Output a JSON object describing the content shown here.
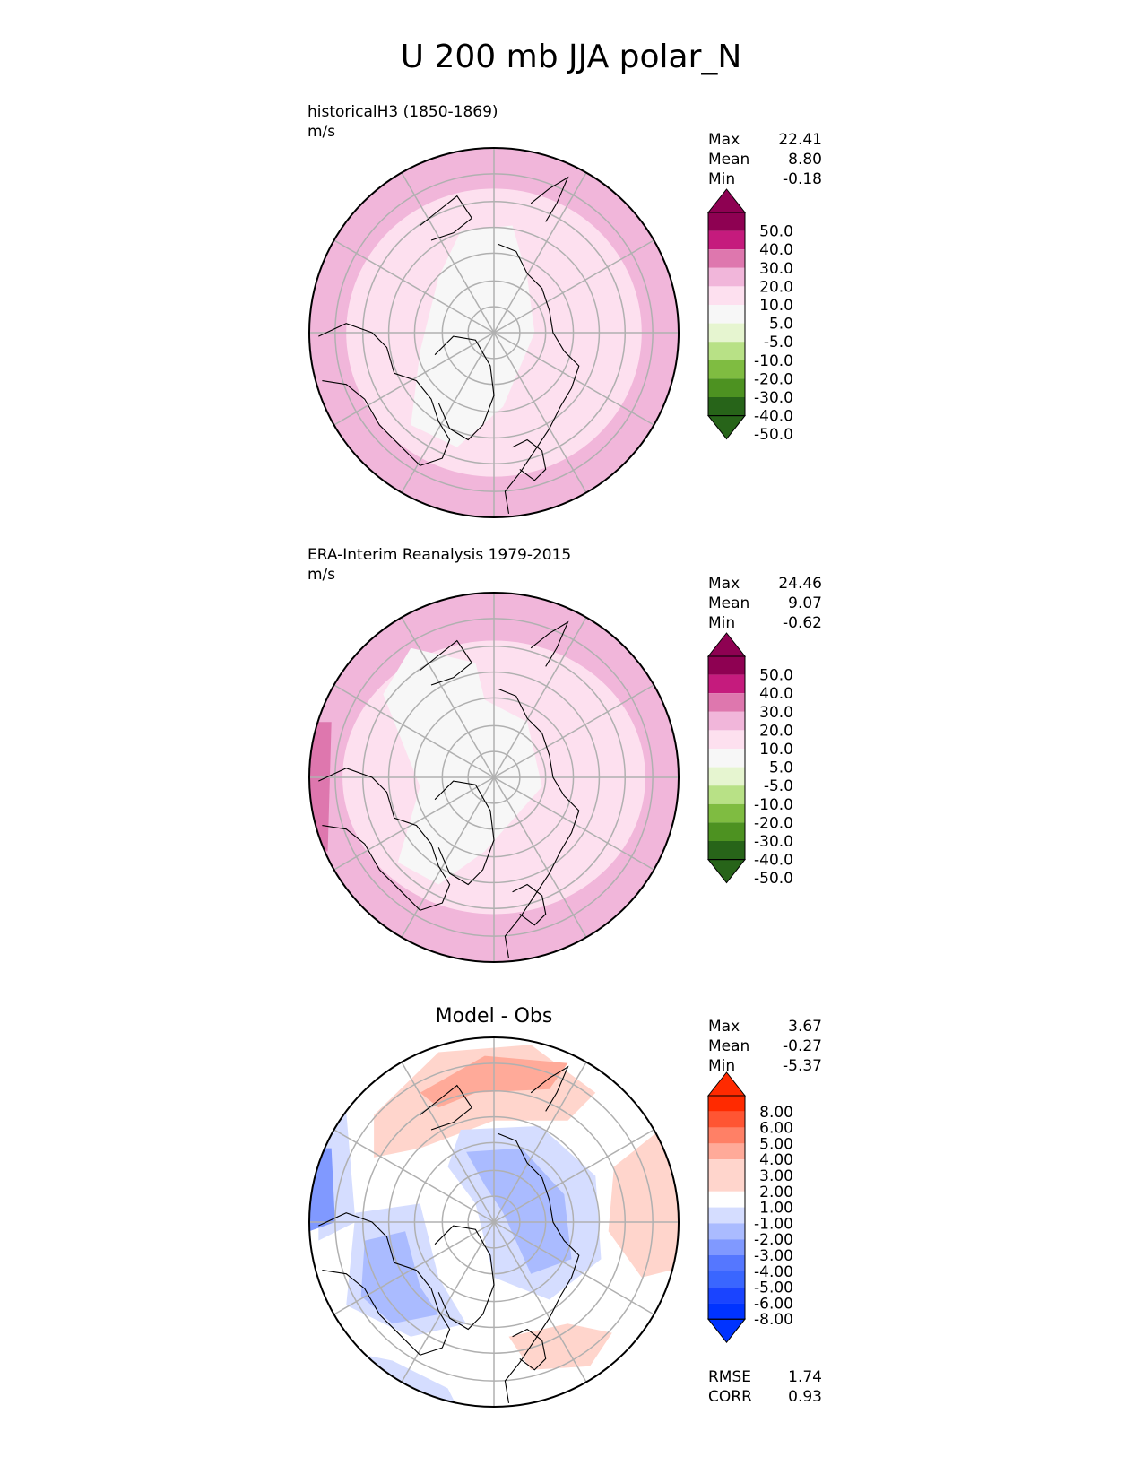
{
  "title": "U 200 mb JJA polar_N",
  "colors": {
    "seq": [
      "#8e0152",
      "#c51b7d",
      "#de77ae",
      "#f1b6da",
      "#fde0ef",
      "#f7f7f7",
      "#e6f5d0",
      "#b8e186",
      "#7fbc41",
      "#4d9221",
      "#276419"
    ],
    "seq_top_cap": "#8e0152",
    "seq_bottom_cap": "#276419",
    "diff": [
      "#ff2a00",
      "#ff5533",
      "#ff8066",
      "#ffaa99",
      "#ffd5cc",
      "#ffffff",
      "#d5ddff",
      "#aabbff",
      "#8099ff",
      "#5577ff",
      "#2a55ff"
    ],
    "diff_top_cap": "#ff2a00",
    "diff_bottom_cap": "#0033ff",
    "grid": "#b0b0b0",
    "coast": "#000000"
  },
  "panels": [
    {
      "name": "test",
      "title_line1": "historicalH3 (1850-1869)",
      "title_line2": "m/s",
      "stats": [
        {
          "label": "Max",
          "value": "22.41"
        },
        {
          "label": "Mean",
          "value": "8.80"
        },
        {
          "label": "Min",
          "value": "-0.18"
        }
      ],
      "colorbar_ticks": [
        "50.0",
        "40.0",
        "30.0",
        "20.0",
        "10.0",
        "5.0",
        "-5.0",
        "-10.0",
        "-20.0",
        "-30.0",
        "-40.0",
        "-50.0"
      ]
    },
    {
      "name": "ref",
      "title_line1": "ERA-Interim Reanalysis 1979-2015",
      "title_line2": "m/s",
      "stats": [
        {
          "label": "Max",
          "value": "24.46"
        },
        {
          "label": "Mean",
          "value": "9.07"
        },
        {
          "label": "Min",
          "value": "-0.62"
        }
      ],
      "colorbar_ticks": [
        "50.0",
        "40.0",
        "30.0",
        "20.0",
        "10.0",
        "5.0",
        "-5.0",
        "-10.0",
        "-20.0",
        "-30.0",
        "-40.0",
        "-50.0"
      ]
    },
    {
      "name": "diff",
      "title_center": "Model - Obs",
      "stats": [
        {
          "label": "Max",
          "value": "3.67"
        },
        {
          "label": "Mean",
          "value": "-0.27"
        },
        {
          "label": "Min",
          "value": "-5.37"
        }
      ],
      "colorbar_ticks": [
        "8.00",
        "6.00",
        "5.00",
        "4.00",
        "3.00",
        "2.00",
        "1.00",
        "-1.00",
        "-2.00",
        "-3.00",
        "-4.00",
        "-5.00",
        "-6.00",
        "-8.00"
      ],
      "metrics": [
        {
          "label": "RMSE",
          "value": "1.74"
        },
        {
          "label": "CORR",
          "value": "0.93"
        }
      ]
    }
  ],
  "chart_data": [
    {
      "type": "heatmap",
      "title": "historicalH3 (1850-1869)",
      "units": "m/s",
      "projection": "north polar stereographic",
      "variable": "U 200 mb JJA",
      "levels": [
        -50,
        -40,
        -30,
        -20,
        -10,
        -5,
        5,
        10,
        20,
        30,
        40,
        50
      ],
      "stats": {
        "max": 22.41,
        "mean": 8.8,
        "min": -0.18
      }
    },
    {
      "type": "heatmap",
      "title": "ERA-Interim Reanalysis 1979-2015",
      "units": "m/s",
      "projection": "north polar stereographic",
      "variable": "U 200 mb JJA",
      "levels": [
        -50,
        -40,
        -30,
        -20,
        -10,
        -5,
        5,
        10,
        20,
        30,
        40,
        50
      ],
      "stats": {
        "max": 24.46,
        "mean": 9.07,
        "min": -0.62
      }
    },
    {
      "type": "heatmap",
      "title": "Model - Obs",
      "projection": "north polar stereographic",
      "levels": [
        -8,
        -6,
        -5,
        -4,
        -3,
        -2,
        -1,
        1,
        2,
        3,
        4,
        5,
        6,
        8
      ],
      "stats": {
        "max": 3.67,
        "mean": -0.27,
        "min": -5.37,
        "rmse": 1.74,
        "corr": 0.93
      }
    }
  ]
}
